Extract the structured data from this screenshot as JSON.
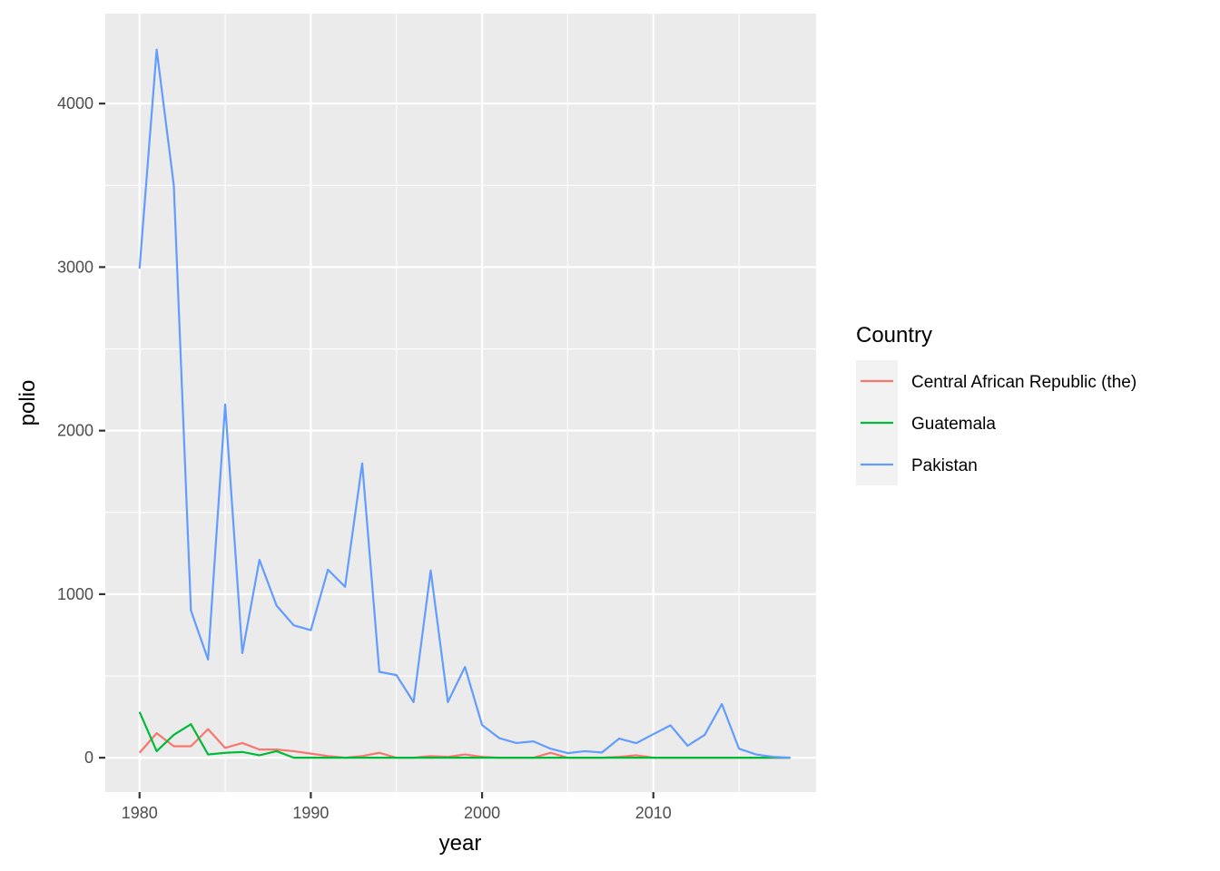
{
  "chart_data": {
    "type": "line",
    "xlabel": "year",
    "ylabel": "polio",
    "xlim": [
      1978,
      2019.5
    ],
    "ylim": [
      -210,
      4550
    ],
    "x_ticks": [
      1980,
      1990,
      2000,
      2010
    ],
    "x_tick_labels": [
      "1980",
      "1990",
      "2000",
      "2010"
    ],
    "y_ticks": [
      0,
      1000,
      2000,
      3000,
      4000
    ],
    "y_tick_labels": [
      "0",
      "1000",
      "2000",
      "3000",
      "4000"
    ],
    "grid": true,
    "legend": {
      "title": "Country",
      "position": "right"
    },
    "x": [
      1980,
      1981,
      1982,
      1983,
      1984,
      1985,
      1986,
      1987,
      1988,
      1989,
      1990,
      1991,
      1992,
      1993,
      1994,
      1995,
      1996,
      1997,
      1998,
      1999,
      2000,
      2001,
      2002,
      2003,
      2004,
      2005,
      2006,
      2007,
      2008,
      2009,
      2010,
      2011,
      2012,
      2013,
      2014,
      2015,
      2016,
      2017,
      2018
    ],
    "series": [
      {
        "name": "Central African Republic (the)",
        "color": "#F8766D",
        "values": [
          30,
          150,
          70,
          70,
          175,
          60,
          90,
          50,
          50,
          40,
          25,
          10,
          0,
          10,
          30,
          0,
          0,
          10,
          5,
          20,
          5,
          0,
          0,
          0,
          30,
          0,
          0,
          0,
          5,
          15,
          0,
          0,
          0,
          0,
          0,
          0,
          0,
          0,
          0
        ]
      },
      {
        "name": "Guatemala",
        "color": "#00BA38",
        "values": [
          280,
          40,
          140,
          205,
          20,
          30,
          35,
          15,
          40,
          0,
          0,
          0,
          0,
          0,
          0,
          0,
          0,
          0,
          0,
          0,
          0,
          0,
          0,
          0,
          0,
          0,
          0,
          0,
          0,
          0,
          0,
          0,
          0,
          0,
          0,
          0,
          0,
          0,
          0
        ]
      },
      {
        "name": "Pakistan",
        "color": "#619CFF",
        "values": [
          2990,
          4330,
          3500,
          900,
          600,
          2160,
          640,
          1210,
          930,
          810,
          780,
          1150,
          1045,
          1800,
          525,
          505,
          340,
          1145,
          340,
          555,
          200,
          120,
          90,
          100,
          55,
          28,
          40,
          32,
          117,
          89,
          144,
          198,
          73,
          140,
          328,
          55,
          20,
          5,
          0
        ]
      }
    ]
  }
}
